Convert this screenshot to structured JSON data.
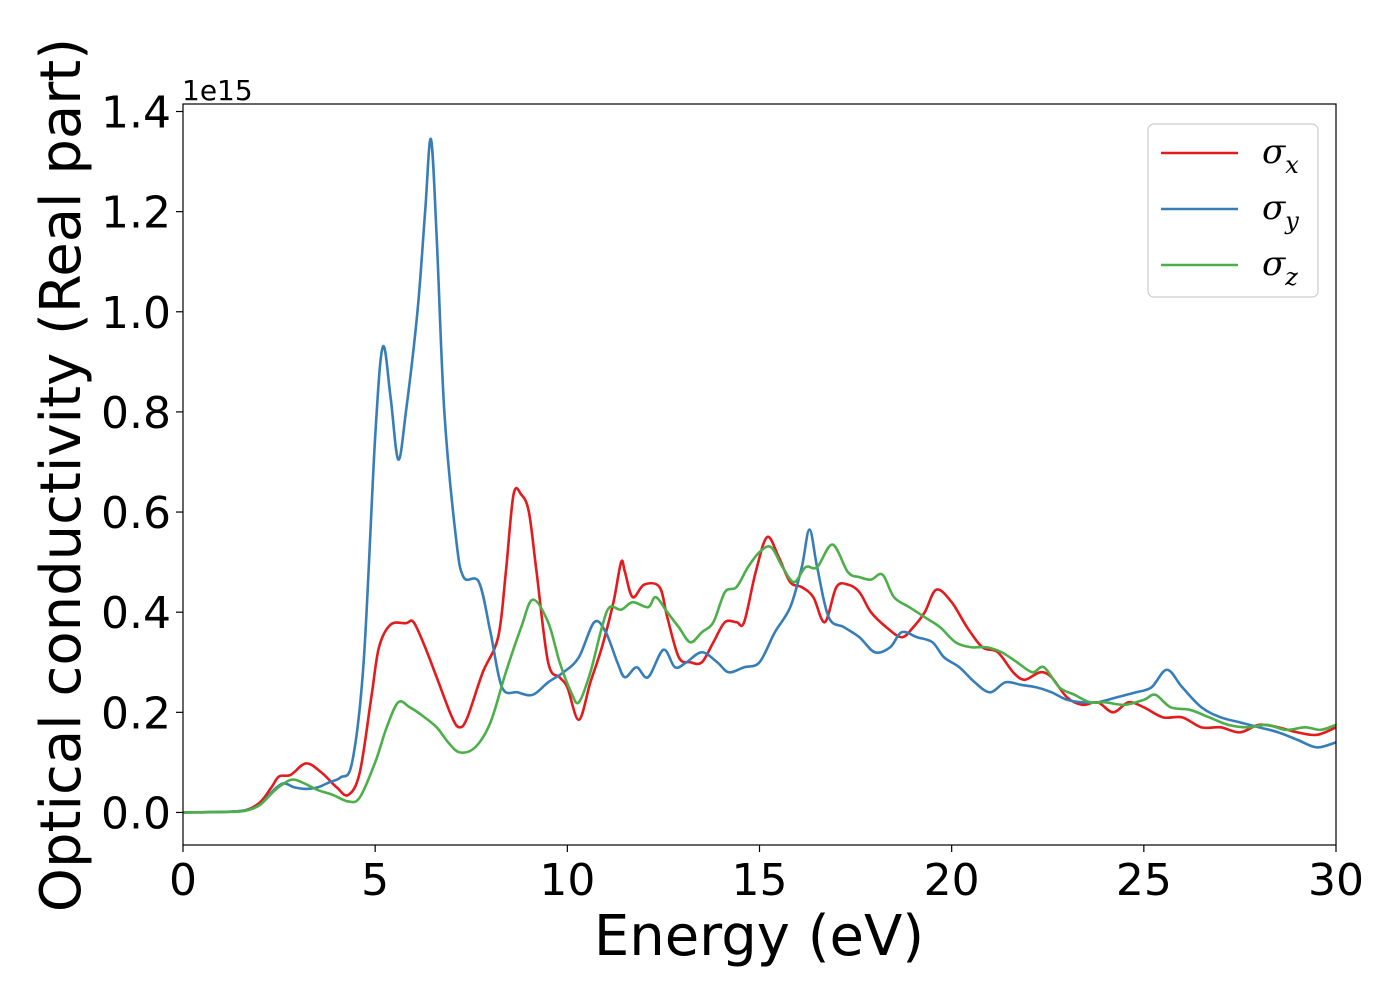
{
  "chart_data": {
    "type": "line",
    "xlabel": "Energy (eV)",
    "ylabel": "Optical conductivity (Real part)",
    "offset_text": "1e15",
    "xlim": [
      0,
      30
    ],
    "ylim": [
      -0.065,
      1.415
    ],
    "x_ticks": [
      0,
      5,
      10,
      15,
      20,
      25,
      30
    ],
    "x_tick_labels": [
      "0",
      "5",
      "10",
      "15",
      "20",
      "25",
      "30"
    ],
    "y_ticks": [
      0.0,
      0.2,
      0.4,
      0.6,
      0.8,
      1.0,
      1.2,
      1.4
    ],
    "y_tick_labels": [
      "0.0",
      "0.2",
      "0.4",
      "0.6",
      "0.8",
      "1.0",
      "1.2",
      "1.4"
    ],
    "grid": false,
    "legend_position": "top-right",
    "series": [
      {
        "name": "σx",
        "name_base": "σ",
        "name_sub": "x",
        "color": "#e41a1c",
        "points": [
          [
            0,
            0
          ],
          [
            1,
            0.001
          ],
          [
            1.6,
            0.004
          ],
          [
            2,
            0.02
          ],
          [
            2.3,
            0.05
          ],
          [
            2.5,
            0.072
          ],
          [
            2.8,
            0.075
          ],
          [
            3.2,
            0.098
          ],
          [
            3.6,
            0.08
          ],
          [
            4,
            0.05
          ],
          [
            4.3,
            0.035
          ],
          [
            4.6,
            0.08
          ],
          [
            4.9,
            0.23
          ],
          [
            5.1,
            0.33
          ],
          [
            5.4,
            0.375
          ],
          [
            5.8,
            0.378
          ],
          [
            6,
            0.38
          ],
          [
            6.3,
            0.33
          ],
          [
            6.6,
            0.27
          ],
          [
            7,
            0.19
          ],
          [
            7.2,
            0.17
          ],
          [
            7.4,
            0.19
          ],
          [
            7.8,
            0.28
          ],
          [
            8.2,
            0.35
          ],
          [
            8.4,
            0.48
          ],
          [
            8.6,
            0.635
          ],
          [
            8.8,
            0.635
          ],
          [
            9,
            0.6
          ],
          [
            9.2,
            0.48
          ],
          [
            9.5,
            0.3
          ],
          [
            9.8,
            0.27
          ],
          [
            10,
            0.25
          ],
          [
            10.3,
            0.185
          ],
          [
            10.6,
            0.26
          ],
          [
            10.9,
            0.33
          ],
          [
            11.2,
            0.42
          ],
          [
            11.4,
            0.5
          ],
          [
            11.5,
            0.48
          ],
          [
            11.7,
            0.43
          ],
          [
            12,
            0.455
          ],
          [
            12.4,
            0.45
          ],
          [
            12.6,
            0.39
          ],
          [
            12.9,
            0.31
          ],
          [
            13.2,
            0.3
          ],
          [
            13.5,
            0.3
          ],
          [
            13.8,
            0.34
          ],
          [
            14.1,
            0.38
          ],
          [
            14.4,
            0.38
          ],
          [
            14.6,
            0.38
          ],
          [
            14.9,
            0.48
          ],
          [
            15.2,
            0.55
          ],
          [
            15.5,
            0.51
          ],
          [
            15.8,
            0.46
          ],
          [
            16.1,
            0.45
          ],
          [
            16.4,
            0.43
          ],
          [
            16.7,
            0.38
          ],
          [
            17,
            0.45
          ],
          [
            17.3,
            0.455
          ],
          [
            17.6,
            0.44
          ],
          [
            17.9,
            0.4
          ],
          [
            18.3,
            0.37
          ],
          [
            18.7,
            0.35
          ],
          [
            19,
            0.37
          ],
          [
            19.3,
            0.4
          ],
          [
            19.6,
            0.445
          ],
          [
            20,
            0.42
          ],
          [
            20.4,
            0.37
          ],
          [
            20.8,
            0.33
          ],
          [
            21.2,
            0.32
          ],
          [
            21.6,
            0.28
          ],
          [
            21.9,
            0.265
          ],
          [
            22.3,
            0.28
          ],
          [
            22.6,
            0.27
          ],
          [
            23,
            0.23
          ],
          [
            23.4,
            0.215
          ],
          [
            23.8,
            0.22
          ],
          [
            24.2,
            0.2
          ],
          [
            24.6,
            0.22
          ],
          [
            25,
            0.21
          ],
          [
            25.5,
            0.19
          ],
          [
            26,
            0.19
          ],
          [
            26.5,
            0.17
          ],
          [
            27,
            0.17
          ],
          [
            27.5,
            0.16
          ],
          [
            28,
            0.175
          ],
          [
            28.5,
            0.17
          ],
          [
            29,
            0.16
          ],
          [
            29.5,
            0.155
          ],
          [
            30,
            0.17
          ]
        ]
      },
      {
        "name": "σy",
        "name_base": "σ",
        "name_sub": "y",
        "color": "#377eb8",
        "points": [
          [
            0,
            0
          ],
          [
            1,
            0.001
          ],
          [
            1.6,
            0.004
          ],
          [
            2,
            0.015
          ],
          [
            2.3,
            0.04
          ],
          [
            2.6,
            0.058
          ],
          [
            2.9,
            0.05
          ],
          [
            3.2,
            0.047
          ],
          [
            3.5,
            0.05
          ],
          [
            3.8,
            0.06
          ],
          [
            4.1,
            0.07
          ],
          [
            4.4,
            0.1
          ],
          [
            4.7,
            0.3
          ],
          [
            5,
            0.75
          ],
          [
            5.2,
            0.93
          ],
          [
            5.4,
            0.83
          ],
          [
            5.6,
            0.705
          ],
          [
            5.8,
            0.8
          ],
          [
            6.1,
            1.0
          ],
          [
            6.3,
            1.2
          ],
          [
            6.45,
            1.345
          ],
          [
            6.6,
            1.15
          ],
          [
            6.8,
            0.8
          ],
          [
            7.1,
            0.55
          ],
          [
            7.3,
            0.47
          ],
          [
            7.7,
            0.46
          ],
          [
            8,
            0.36
          ],
          [
            8.3,
            0.25
          ],
          [
            8.7,
            0.24
          ],
          [
            9.1,
            0.235
          ],
          [
            9.5,
            0.26
          ],
          [
            9.9,
            0.28
          ],
          [
            10.3,
            0.31
          ],
          [
            10.7,
            0.38
          ],
          [
            11,
            0.36
          ],
          [
            11.3,
            0.3
          ],
          [
            11.5,
            0.27
          ],
          [
            11.8,
            0.29
          ],
          [
            12.1,
            0.27
          ],
          [
            12.5,
            0.325
          ],
          [
            12.8,
            0.29
          ],
          [
            13.1,
            0.3
          ],
          [
            13.5,
            0.32
          ],
          [
            13.9,
            0.3
          ],
          [
            14.2,
            0.28
          ],
          [
            14.6,
            0.29
          ],
          [
            15,
            0.3
          ],
          [
            15.4,
            0.36
          ],
          [
            15.8,
            0.41
          ],
          [
            16.1,
            0.49
          ],
          [
            16.3,
            0.565
          ],
          [
            16.5,
            0.49
          ],
          [
            16.8,
            0.39
          ],
          [
            17.2,
            0.37
          ],
          [
            17.6,
            0.35
          ],
          [
            18,
            0.32
          ],
          [
            18.4,
            0.33
          ],
          [
            18.7,
            0.36
          ],
          [
            19.1,
            0.35
          ],
          [
            19.5,
            0.34
          ],
          [
            19.8,
            0.31
          ],
          [
            20.2,
            0.29
          ],
          [
            20.6,
            0.26
          ],
          [
            21,
            0.24
          ],
          [
            21.4,
            0.26
          ],
          [
            21.8,
            0.255
          ],
          [
            22.2,
            0.25
          ],
          [
            22.6,
            0.24
          ],
          [
            23,
            0.225
          ],
          [
            23.4,
            0.22
          ],
          [
            23.8,
            0.22
          ],
          [
            24.3,
            0.23
          ],
          [
            24.8,
            0.24
          ],
          [
            25.2,
            0.25
          ],
          [
            25.6,
            0.285
          ],
          [
            26,
            0.25
          ],
          [
            26.5,
            0.21
          ],
          [
            27,
            0.19
          ],
          [
            27.5,
            0.18
          ],
          [
            28,
            0.17
          ],
          [
            28.5,
            0.16
          ],
          [
            29,
            0.145
          ],
          [
            29.5,
            0.13
          ],
          [
            30,
            0.14
          ]
        ]
      },
      {
        "name": "σz",
        "name_base": "σ",
        "name_sub": "z",
        "color": "#4daf4a",
        "points": [
          [
            0,
            0
          ],
          [
            1,
            0.001
          ],
          [
            1.6,
            0.003
          ],
          [
            2,
            0.015
          ],
          [
            2.4,
            0.045
          ],
          [
            2.8,
            0.065
          ],
          [
            3.1,
            0.06
          ],
          [
            3.5,
            0.045
          ],
          [
            3.9,
            0.035
          ],
          [
            4.3,
            0.022
          ],
          [
            4.6,
            0.03
          ],
          [
            5,
            0.1
          ],
          [
            5.3,
            0.17
          ],
          [
            5.6,
            0.22
          ],
          [
            5.9,
            0.21
          ],
          [
            6.2,
            0.195
          ],
          [
            6.6,
            0.17
          ],
          [
            6.9,
            0.14
          ],
          [
            7.2,
            0.12
          ],
          [
            7.6,
            0.13
          ],
          [
            8,
            0.18
          ],
          [
            8.4,
            0.28
          ],
          [
            8.8,
            0.37
          ],
          [
            9.1,
            0.425
          ],
          [
            9.5,
            0.38
          ],
          [
            9.8,
            0.3
          ],
          [
            10.1,
            0.24
          ],
          [
            10.3,
            0.22
          ],
          [
            10.6,
            0.28
          ],
          [
            10.9,
            0.37
          ],
          [
            11.1,
            0.41
          ],
          [
            11.4,
            0.405
          ],
          [
            11.7,
            0.42
          ],
          [
            12.1,
            0.41
          ],
          [
            12.3,
            0.43
          ],
          [
            12.6,
            0.4
          ],
          [
            12.9,
            0.37
          ],
          [
            13.2,
            0.34
          ],
          [
            13.5,
            0.36
          ],
          [
            13.8,
            0.38
          ],
          [
            14.1,
            0.44
          ],
          [
            14.4,
            0.45
          ],
          [
            14.7,
            0.49
          ],
          [
            15,
            0.52
          ],
          [
            15.3,
            0.53
          ],
          [
            15.6,
            0.49
          ],
          [
            15.9,
            0.46
          ],
          [
            16.2,
            0.49
          ],
          [
            16.5,
            0.49
          ],
          [
            16.9,
            0.535
          ],
          [
            17.3,
            0.48
          ],
          [
            17.6,
            0.47
          ],
          [
            17.9,
            0.465
          ],
          [
            18.2,
            0.475
          ],
          [
            18.5,
            0.43
          ],
          [
            18.9,
            0.41
          ],
          [
            19.3,
            0.39
          ],
          [
            19.7,
            0.37
          ],
          [
            20.1,
            0.34
          ],
          [
            20.5,
            0.33
          ],
          [
            20.9,
            0.33
          ],
          [
            21.3,
            0.32
          ],
          [
            21.7,
            0.3
          ],
          [
            22.1,
            0.28
          ],
          [
            22.4,
            0.29
          ],
          [
            22.8,
            0.25
          ],
          [
            23.2,
            0.235
          ],
          [
            23.6,
            0.22
          ],
          [
            24,
            0.22
          ],
          [
            24.5,
            0.215
          ],
          [
            25,
            0.225
          ],
          [
            25.3,
            0.235
          ],
          [
            25.7,
            0.21
          ],
          [
            26.2,
            0.205
          ],
          [
            26.7,
            0.19
          ],
          [
            27.2,
            0.175
          ],
          [
            27.7,
            0.17
          ],
          [
            28.2,
            0.175
          ],
          [
            28.7,
            0.165
          ],
          [
            29.2,
            0.17
          ],
          [
            29.6,
            0.165
          ],
          [
            30,
            0.175
          ]
        ]
      }
    ]
  }
}
